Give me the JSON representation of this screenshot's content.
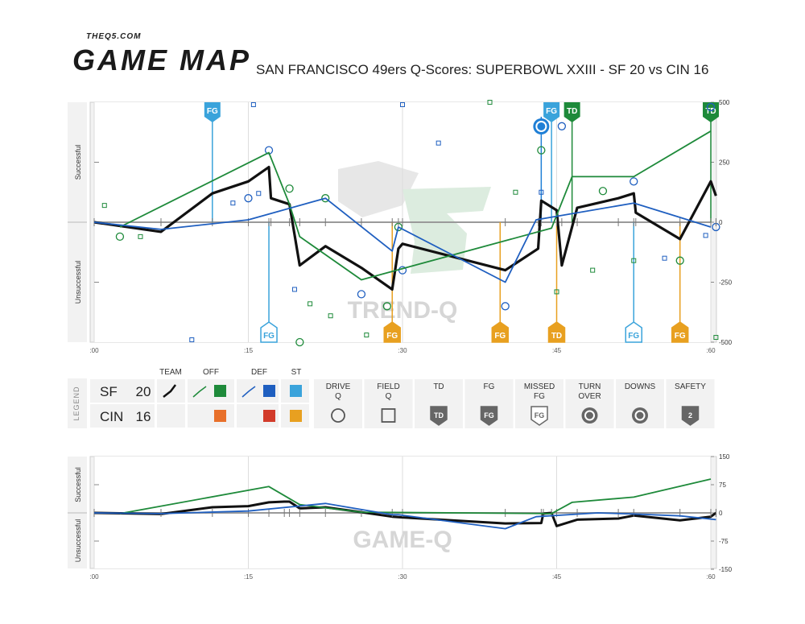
{
  "brand": {
    "site": "THEQ5.COM",
    "name": "GAME MAP"
  },
  "title": "SAN FRANCISCO 49ers Q-Scores: SUPERBOWL XXIII - SF 20 vs CIN 16",
  "colors": {
    "team": "#111111",
    "offense": "#1e8a3a",
    "defense": "#1f5fc0",
    "special_teams": "#3aa3db",
    "opp_offense": "#e8702a",
    "opp_defense": "#d23b2a",
    "opp_special": "#e8a020",
    "axis": "#999999",
    "panel": "#f2f2f2"
  },
  "legend": {
    "side_label": "LEGEND",
    "rows": [
      {
        "team": "SF",
        "score": "20"
      },
      {
        "team": "CIN",
        "score": "16"
      }
    ],
    "columns": {
      "team": "TEAM",
      "off": "OFF",
      "def": "DEF",
      "st": "ST"
    },
    "items": [
      {
        "label": "DRIVE\nQ",
        "icon": "circle-icon"
      },
      {
        "label": "FIELD\nQ",
        "icon": "square-icon"
      },
      {
        "label": "TD",
        "icon": "td-badge-icon"
      },
      {
        "label": "FG",
        "icon": "fg-badge-icon"
      },
      {
        "label": "MISSED\nFG",
        "icon": "missed-fg-badge-icon"
      },
      {
        "label": "TURN\nOVER",
        "icon": "turnover-icon"
      },
      {
        "label": "DOWNS",
        "icon": "downs-icon"
      },
      {
        "label": "SAFETY",
        "icon": "safety-badge-icon"
      }
    ]
  },
  "chart_data": [
    {
      "type": "line",
      "name": "trend-q",
      "watermark": "TREND-Q",
      "ylabel_top": "Successful",
      "ylabel_bottom": "Unsuccessful",
      "xlim": [
        0,
        60
      ],
      "ylim": [
        -500,
        500
      ],
      "x_ticks": [
        {
          "x": 0,
          "label": ":00"
        },
        {
          "x": 15,
          "label": ":15"
        },
        {
          "x": 30,
          "label": ":30"
        },
        {
          "x": 45,
          "label": ":45"
        },
        {
          "x": 60,
          "label": ":60"
        }
      ],
      "y_ticks": [
        500,
        250,
        0,
        -250,
        -500
      ],
      "series": [
        {
          "role": "team",
          "points": [
            [
              0,
              0
            ],
            [
              6.5,
              -40
            ],
            [
              11.5,
              120
            ],
            [
              15,
              170
            ],
            [
              17,
              230
            ],
            [
              17.2,
              100
            ],
            [
              19,
              75
            ],
            [
              20,
              -180
            ],
            [
              22.5,
              -100
            ],
            [
              26,
              -190
            ],
            [
              29,
              -280
            ],
            [
              29.6,
              -110
            ],
            [
              30,
              -90
            ],
            [
              40,
              -200
            ],
            [
              43.2,
              -110
            ],
            [
              43.5,
              90
            ],
            [
              45,
              50
            ],
            [
              45.5,
              -180
            ],
            [
              47,
              60
            ],
            [
              51,
              100
            ],
            [
              52.5,
              120
            ],
            [
              52.7,
              40
            ],
            [
              57,
              -70
            ],
            [
              60,
              170
            ],
            [
              60.5,
              110
            ]
          ]
        },
        {
          "role": "offense",
          "points": [
            [
              2.5,
              -20
            ],
            [
              17,
              290
            ],
            [
              19,
              75
            ],
            [
              20,
              -60
            ],
            [
              26,
              -240
            ],
            [
              44.5,
              -25
            ],
            [
              46.5,
              190
            ],
            [
              52.5,
              190
            ],
            [
              60,
              380
            ]
          ]
        },
        {
          "role": "defense",
          "points": [
            [
              0,
              0
            ],
            [
              6.5,
              -30
            ],
            [
              15,
              10
            ],
            [
              22.5,
              100
            ],
            [
              29,
              -120
            ],
            [
              29.6,
              -20
            ],
            [
              40,
              -250
            ],
            [
              43,
              10
            ],
            [
              52.5,
              80
            ],
            [
              57,
              20
            ],
            [
              60,
              -20
            ]
          ]
        }
      ],
      "drive_q": [
        [
          2.5,
          -60
        ],
        [
          17,
          300
        ],
        [
          19,
          140
        ],
        [
          15,
          100
        ],
        [
          22.5,
          100
        ],
        [
          26,
          -300
        ],
        [
          28.5,
          -350
        ],
        [
          30,
          -200
        ],
        [
          29.6,
          -20
        ],
        [
          40,
          -350
        ],
        [
          43.5,
          300
        ],
        [
          45.5,
          400
        ],
        [
          49.5,
          130
        ],
        [
          52.5,
          170
        ],
        [
          57,
          -160
        ],
        [
          60,
          480
        ],
        [
          20,
          -500
        ],
        [
          60.5,
          -20
        ]
      ],
      "field_q": [
        [
          1,
          70
        ],
        [
          4.5,
          -60
        ],
        [
          13.5,
          80
        ],
        [
          16,
          120
        ],
        [
          19.5,
          -280
        ],
        [
          21,
          -340
        ],
        [
          23,
          -390
        ],
        [
          26.5,
          -470
        ],
        [
          33.5,
          330
        ],
        [
          38.5,
          500
        ],
        [
          41,
          125
        ],
        [
          43.5,
          125
        ],
        [
          45,
          -290
        ],
        [
          48.5,
          -200
        ],
        [
          52.5,
          -160
        ],
        [
          55.5,
          -150
        ],
        [
          59.5,
          -55
        ],
        [
          15.5,
          490
        ],
        [
          30,
          490
        ],
        [
          60.5,
          -480
        ],
        [
          9.5,
          -490
        ]
      ],
      "events": [
        {
          "x": 11.5,
          "label": "FG",
          "team": "SF",
          "side": "top",
          "unit": "st"
        },
        {
          "x": 44.5,
          "label": "FG",
          "team": "SF",
          "side": "top",
          "unit": "st"
        },
        {
          "x": 46.5,
          "label": "TD",
          "team": "SF",
          "side": "top",
          "unit": "off"
        },
        {
          "x": 60,
          "label": "TD",
          "team": "SF",
          "side": "top",
          "unit": "off"
        },
        {
          "x": 43.5,
          "label": "",
          "team": "SF",
          "side": "top",
          "unit": "turnover"
        },
        {
          "x": 17,
          "label": "FG",
          "team": "CIN",
          "side": "bottom",
          "unit": "st"
        },
        {
          "x": 29,
          "label": "FG",
          "team": "CIN",
          "side": "bottom",
          "unit": "opp"
        },
        {
          "x": 39.5,
          "label": "FG",
          "team": "CIN",
          "side": "bottom",
          "unit": "opp"
        },
        {
          "x": 45,
          "label": "TD",
          "team": "CIN",
          "side": "bottom",
          "unit": "opp"
        },
        {
          "x": 52.5,
          "label": "FG",
          "team": "CIN",
          "side": "bottom",
          "unit": "st"
        },
        {
          "x": 57,
          "label": "FG",
          "team": "CIN",
          "side": "bottom",
          "unit": "opp"
        }
      ]
    },
    {
      "type": "line",
      "name": "game-q",
      "watermark": "GAME-Q",
      "ylabel_top": "Successful",
      "ylabel_bottom": "Unsuccessful",
      "xlim": [
        0,
        60
      ],
      "ylim": [
        -150,
        150
      ],
      "x_ticks": [
        {
          "x": 0,
          "label": ":00"
        },
        {
          "x": 15,
          "label": ":15"
        },
        {
          "x": 30,
          "label": ":30"
        },
        {
          "x": 45,
          "label": ":45"
        },
        {
          "x": 60,
          "label": ":60"
        }
      ],
      "y_ticks": [
        150,
        75,
        0,
        -75,
        -150
      ],
      "series": [
        {
          "role": "team",
          "points": [
            [
              0,
              0
            ],
            [
              6.5,
              -3
            ],
            [
              11.5,
              15
            ],
            [
              15,
              18
            ],
            [
              17,
              28
            ],
            [
              18.5,
              30
            ],
            [
              19,
              30
            ],
            [
              20,
              12
            ],
            [
              22.5,
              15
            ],
            [
              26,
              2
            ],
            [
              29,
              -10
            ],
            [
              30,
              -12
            ],
            [
              40,
              -28
            ],
            [
              43.5,
              -27
            ],
            [
              43.7,
              -2
            ],
            [
              44.5,
              0
            ],
            [
              45,
              -35
            ],
            [
              47,
              -18
            ],
            [
              51,
              -15
            ],
            [
              52.5,
              -7
            ],
            [
              57,
              -20
            ],
            [
              60,
              -10
            ],
            [
              60.5,
              0
            ]
          ]
        },
        {
          "role": "offense",
          "points": [
            [
              2.5,
              -2
            ],
            [
              17,
              70
            ],
            [
              20,
              22
            ],
            [
              26,
              2
            ],
            [
              44.5,
              -2
            ],
            [
              46.5,
              28
            ],
            [
              52.5,
              42
            ],
            [
              60,
              90
            ]
          ]
        },
        {
          "role": "defense",
          "points": [
            [
              0,
              0
            ],
            [
              6.5,
              -2
            ],
            [
              15,
              5
            ],
            [
              22.5,
              25
            ],
            [
              29,
              -5
            ],
            [
              29.6,
              -5
            ],
            [
              40,
              -42
            ],
            [
              43,
              -10
            ],
            [
              49,
              0
            ],
            [
              52.5,
              -3
            ],
            [
              57,
              -8
            ],
            [
              60.5,
              -18
            ]
          ]
        }
      ]
    }
  ]
}
